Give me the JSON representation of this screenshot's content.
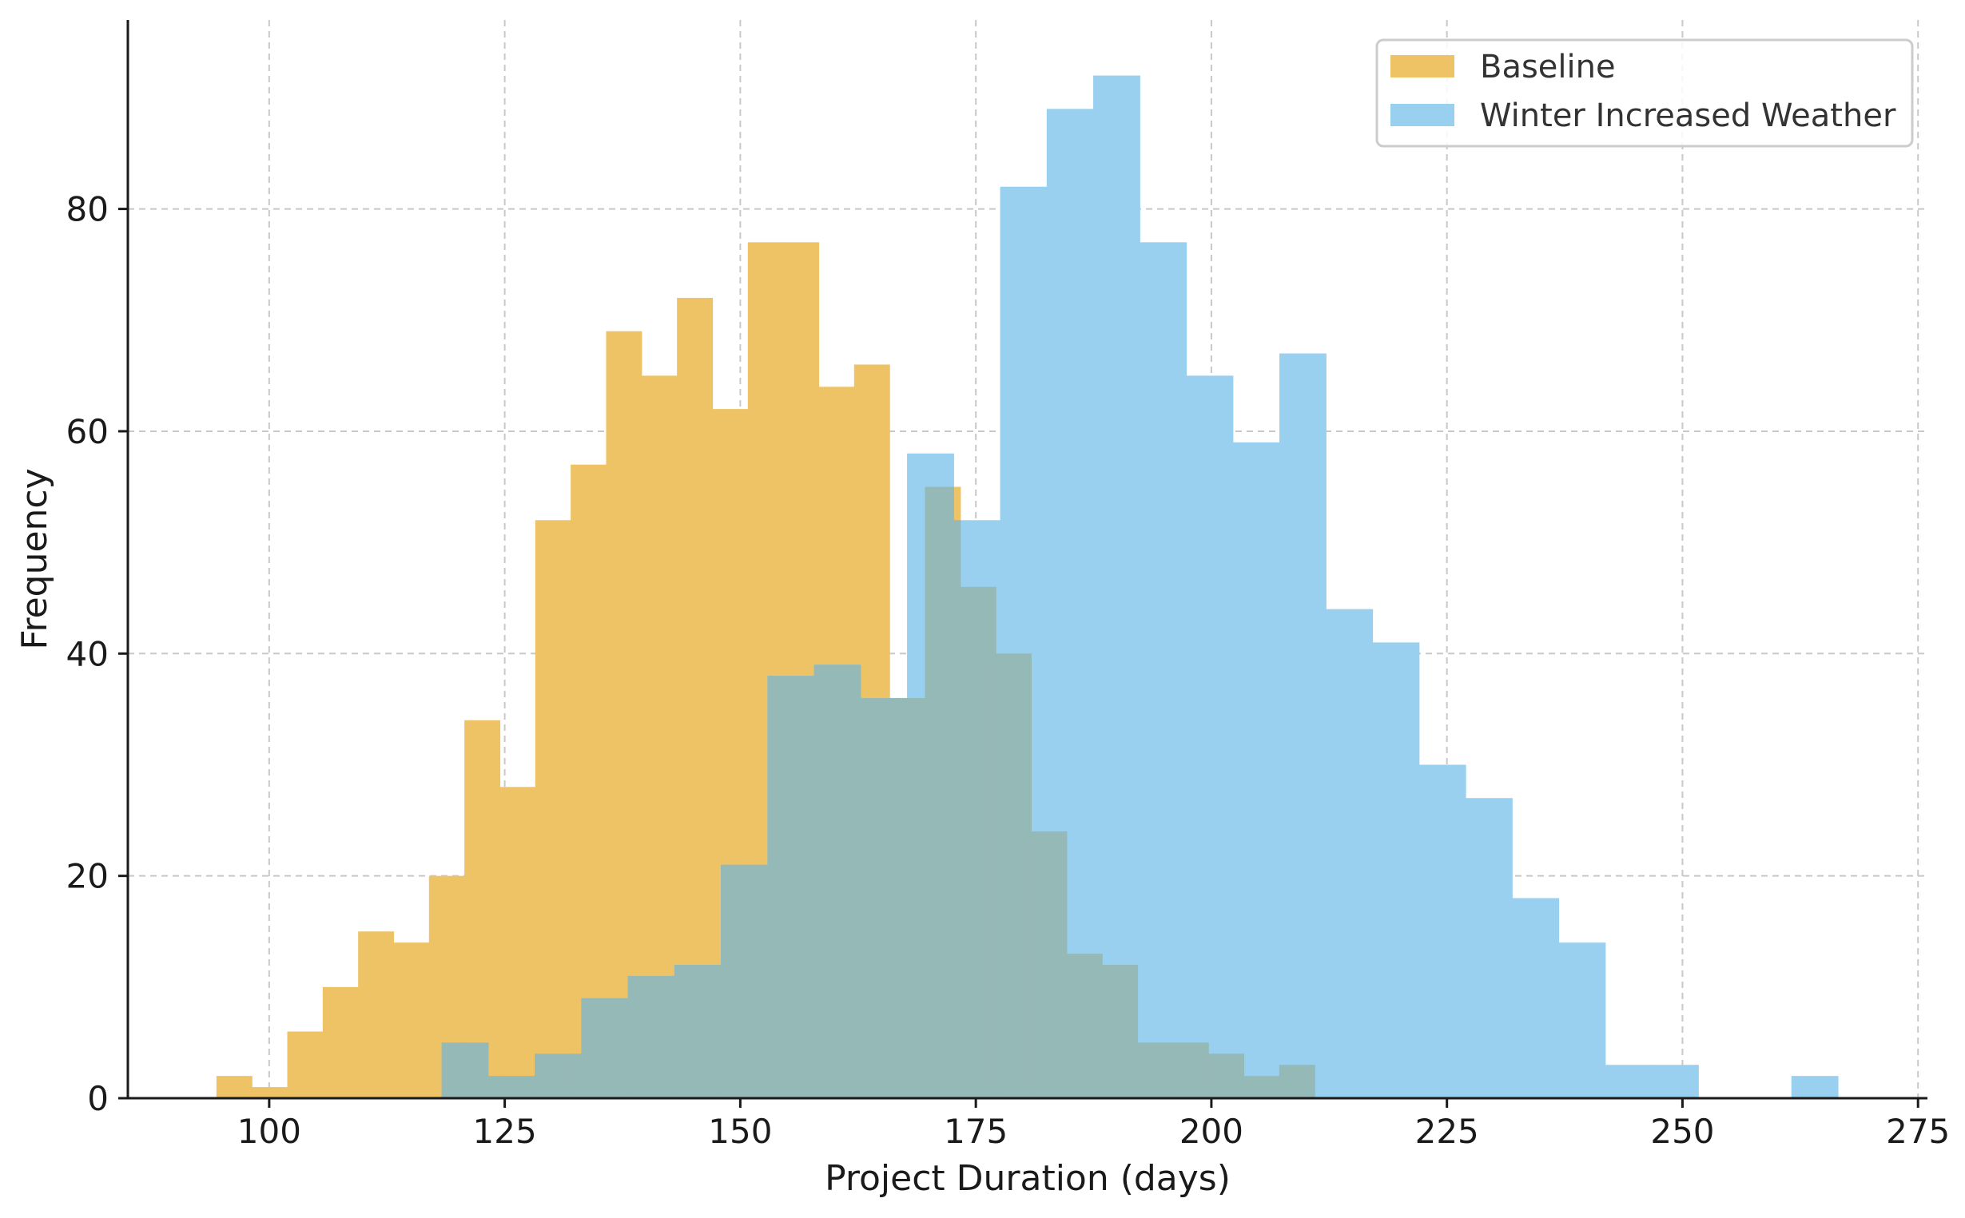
{
  "chart_data": {
    "type": "histogram",
    "xlabel": "Project Duration (days)",
    "ylabel": "Frequency",
    "xlim": [
      85,
      276
    ],
    "ylim": [
      0,
      97
    ],
    "xticks": [
      100,
      125,
      150,
      175,
      200,
      225,
      250,
      275
    ],
    "yticks": [
      0,
      20,
      40,
      60,
      80
    ],
    "grid": true,
    "legend_position": "top-right",
    "overlap_color": "#95b9b6",
    "series": [
      {
        "name": "Baseline",
        "color": "#edc365",
        "bin_start": 94.4,
        "bin_width": 3.76,
        "counts": [
          2,
          1,
          6,
          10,
          15,
          14,
          20,
          34,
          28,
          52,
          57,
          69,
          65,
          72,
          62,
          77,
          77,
          64,
          66,
          36,
          55,
          46,
          40,
          24,
          13,
          12,
          5,
          5,
          4,
          2,
          3
        ]
      },
      {
        "name": "Winter Increased Weather",
        "color": "#9ad0ef",
        "bin_start": 118.3,
        "bin_width": 4.94,
        "counts": [
          5,
          2,
          4,
          9,
          11,
          12,
          21,
          38,
          39,
          36,
          58,
          52,
          82,
          89,
          92,
          77,
          65,
          59,
          67,
          44,
          41,
          30,
          27,
          18,
          14,
          3,
          3,
          0,
          0,
          2
        ]
      }
    ]
  }
}
